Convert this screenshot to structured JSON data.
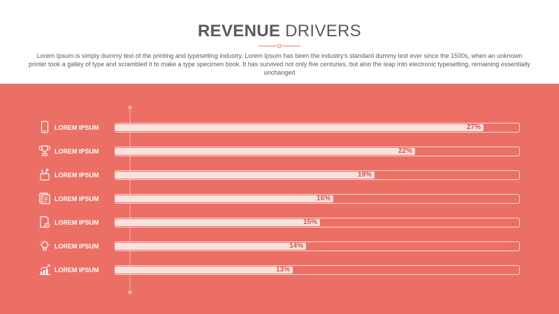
{
  "header": {
    "title_bold": "REVENUE",
    "title_rest": " DRIVERS",
    "description": "Lorem Ipsum is simply dummy text of the printing and typesetting industry. Lorem Ipsum has been the industry's standard dummy text ever since the 1500s, when an unknown printer took a galley of type and scrambled it to make a type specimen book. It has survived not only five centuries, but also the leap into electronic typesetting, remaining essentially unchanged"
  },
  "colors": {
    "band": "#ec6f65",
    "bar_fill": "#fbe1de",
    "value_text": "#d9544b",
    "text": "#5b5b5b"
  },
  "chart_data": {
    "type": "bar",
    "orientation": "horizontal",
    "categories": [
      "LOREM IPSUM",
      "LOREM IPSUM",
      "LOREM IPSUM",
      "LOREM IPSUM",
      "LOREM IPSUM",
      "LOREM IPSUM",
      "LOREM IPSUM"
    ],
    "values": [
      27,
      22,
      19,
      16,
      15,
      14,
      13
    ],
    "value_labels": [
      "27%",
      "22%",
      "19%",
      "16%",
      "15%",
      "14%",
      "13%"
    ],
    "icons": [
      "smartphone-icon",
      "trophy-icon",
      "tools-icon",
      "checklist-icon",
      "document-settings-icon",
      "lightbulb-icon",
      "growth-chart-icon"
    ],
    "title": "",
    "xlabel": "",
    "ylabel": "",
    "xlim": [
      0,
      30
    ],
    "grid": false,
    "legend": "none"
  }
}
